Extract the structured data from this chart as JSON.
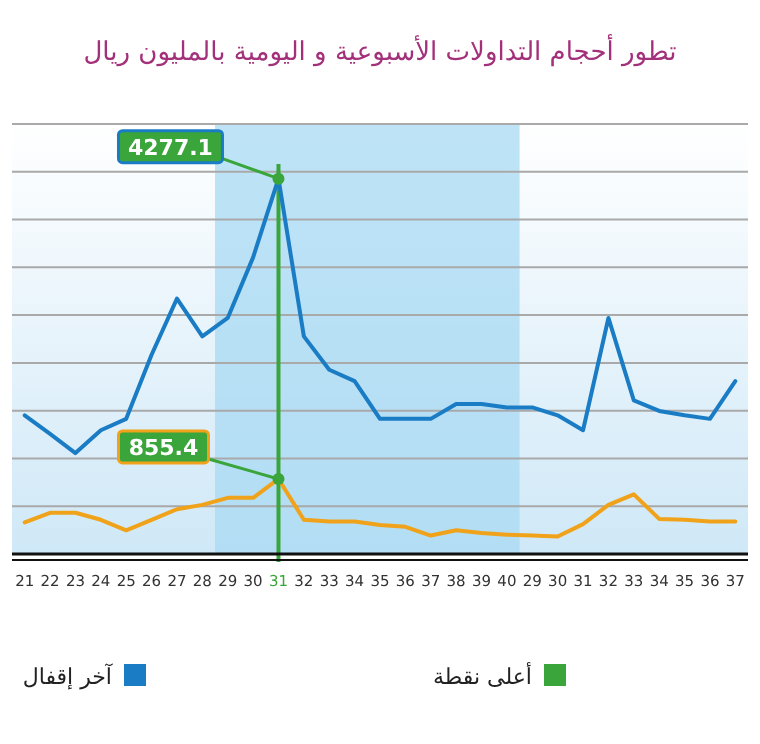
{
  "chart_data": {
    "type": "line",
    "title": "تطور أحجام التداولات الأسبوعية و اليومية بالمليون ريال",
    "categories": [
      "21",
      "22",
      "23",
      "24",
      "25",
      "26",
      "27",
      "28",
      "29",
      "30",
      "31",
      "32",
      "33",
      "34",
      "35",
      "36",
      "37",
      "38",
      "39",
      "40",
      "29",
      "30",
      "31",
      "32",
      "33",
      "34",
      "35",
      "36",
      "37"
    ],
    "ylim": [
      0,
      4900
    ],
    "series": [
      {
        "name": "آخر إقفال",
        "color": "#1a7cc4",
        "values": [
          1580,
          1370,
          1150,
          1410,
          1540,
          2270,
          2910,
          2480,
          2690,
          3380,
          4277.1,
          2480,
          2100,
          1970,
          1540,
          1540,
          1540,
          1710,
          1710,
          1670,
          1670,
          1580,
          1410,
          2690,
          1750,
          1630,
          1580,
          1540,
          1970
        ],
        "value_labels": [
          null,
          null,
          null,
          null,
          null,
          null,
          null,
          null,
          null,
          null,
          "4277.1",
          null,
          null,
          null,
          null,
          null,
          null,
          null,
          null,
          null,
          null,
          null,
          null,
          null,
          null,
          null,
          null,
          null,
          null
        ]
      },
      {
        "color": "#f0a21a",
        "values": [
          360,
          470,
          470,
          390,
          270,
          390,
          510,
          560,
          640,
          640,
          855.4,
          390,
          370,
          370,
          330,
          310,
          210,
          270,
          240,
          220,
          210,
          200,
          340,
          560,
          680,
          400,
          390,
          370,
          370
        ],
        "value_labels": [
          null,
          null,
          null,
          null,
          null,
          null,
          null,
          null,
          null,
          null,
          "855.4",
          null,
          null,
          null,
          null,
          null,
          null,
          null,
          null,
          null,
          null,
          null,
          null,
          null,
          null,
          null,
          null,
          null,
          null
        ]
      }
    ],
    "bands": [
      {
        "axis": "x",
        "from": "29",
        "to": "40",
        "color": "#a8d9f3"
      }
    ],
    "ref_lines": [
      {
        "axis": "x",
        "value": "31",
        "label": "أعلى نقطة",
        "color": "#3aa53a"
      }
    ],
    "grid": "y",
    "legend": "bottom",
    "line_style": "solid",
    "marker": "none"
  }
}
